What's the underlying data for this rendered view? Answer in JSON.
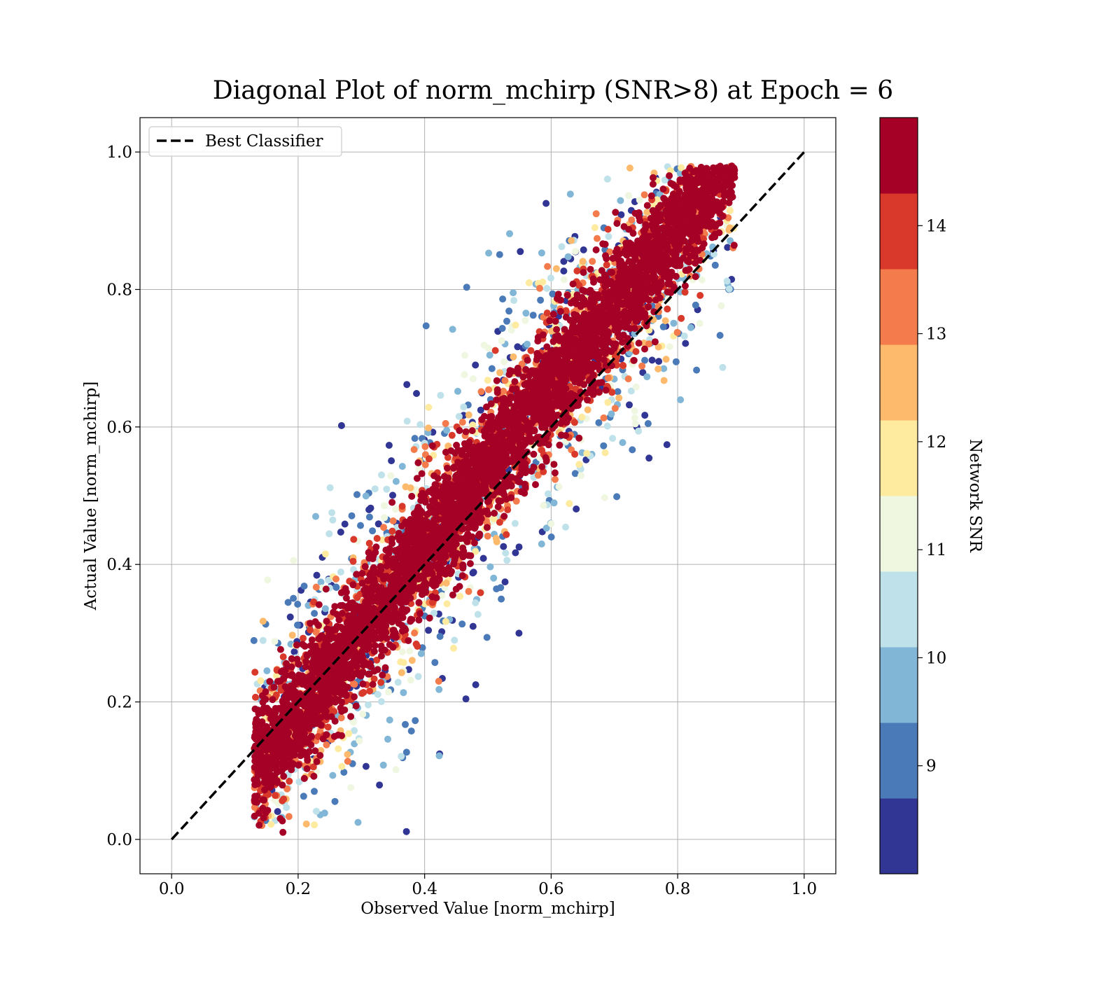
{
  "chart_data": {
    "type": "scatter",
    "title": "Diagonal Plot of norm_mchirp (SNR>8) at Epoch = 6",
    "xlabel": "Observed Value [norm_mchirp]",
    "ylabel": "Actual Value [norm_mchirp]",
    "xlim": [
      -0.05,
      1.05
    ],
    "ylim": [
      -0.05,
      1.05
    ],
    "xticks": [
      "0.0",
      "0.2",
      "0.4",
      "0.6",
      "0.8",
      "1.0"
    ],
    "yticks": [
      "0.0",
      "0.2",
      "0.4",
      "0.6",
      "0.8",
      "1.0"
    ],
    "grid": true,
    "legend": {
      "placement": "upper-left",
      "entries": [
        {
          "label": "Best Classifier",
          "style": "dashed",
          "color": "#000000"
        }
      ]
    },
    "reference_line": {
      "name": "Best Classifier",
      "x": [
        0.0,
        1.0
      ],
      "y": [
        0.0,
        1.0
      ]
    },
    "point_cloud": {
      "description_source": "dense band along the diagonal, spreading wider at lower SNR",
      "x_range": [
        0.13,
        0.89
      ],
      "y_range": [
        0.0,
        0.99
      ],
      "center_line": {
        "slope": 1.18,
        "intercept": -0.05
      }
    },
    "colorbar": {
      "label": "Network SNR",
      "range": [
        8,
        15
      ],
      "ticks": [
        "9",
        "10",
        "11",
        "12",
        "13",
        "14"
      ],
      "tick_values": [
        9,
        10,
        11,
        12,
        13,
        14
      ],
      "bins": [
        {
          "from": 8.0,
          "to": 8.7,
          "color": "#313695"
        },
        {
          "from": 8.7,
          "to": 9.4,
          "color": "#4a7ab7"
        },
        {
          "from": 9.4,
          "to": 10.1,
          "color": "#81b6d6"
        },
        {
          "from": 10.1,
          "to": 10.8,
          "color": "#bfe1ea"
        },
        {
          "from": 10.8,
          "to": 11.5,
          "color": "#eff7e1"
        },
        {
          "from": 11.5,
          "to": 12.2,
          "color": "#feeba0"
        },
        {
          "from": 12.2,
          "to": 12.9,
          "color": "#fdba6c"
        },
        {
          "from": 12.9,
          "to": 13.6,
          "color": "#f47b4b"
        },
        {
          "from": 13.6,
          "to": 14.3,
          "color": "#d8392a"
        },
        {
          "from": 14.3,
          "to": 15.0,
          "color": "#a50026"
        }
      ]
    }
  }
}
